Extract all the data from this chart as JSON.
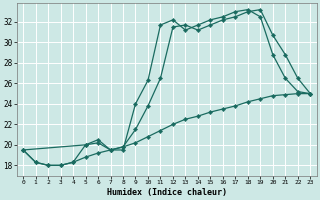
{
  "xlabel": "Humidex (Indice chaleur)",
  "bg_color": "#cde8e5",
  "line_color": "#1a6b60",
  "grid_color": "#ffffff",
  "xlim": [
    -0.5,
    23.5
  ],
  "ylim": [
    17.0,
    33.8
  ],
  "yticks": [
    18,
    20,
    22,
    24,
    26,
    28,
    30,
    32
  ],
  "xticks": [
    0,
    1,
    2,
    3,
    4,
    5,
    6,
    7,
    8,
    9,
    10,
    11,
    12,
    13,
    14,
    15,
    16,
    17,
    18,
    19,
    20,
    21,
    22,
    23
  ],
  "line1_x": [
    0,
    1,
    2,
    3,
    4,
    5,
    6,
    7,
    8,
    9,
    10,
    11,
    12,
    13,
    14,
    15,
    16,
    17,
    18,
    19,
    20,
    21,
    22,
    23
  ],
  "line1_y": [
    19.5,
    18.3,
    18.0,
    18.0,
    18.3,
    20.0,
    20.2,
    19.5,
    19.5,
    24.0,
    26.3,
    31.7,
    32.2,
    31.2,
    31.7,
    32.2,
    32.5,
    33.0,
    33.2,
    32.5,
    28.8,
    26.5,
    25.2,
    25.0
  ],
  "line2_x": [
    0,
    5,
    6,
    7,
    8,
    9,
    10,
    11,
    12,
    13,
    14,
    15,
    16,
    17,
    18,
    19,
    20,
    21,
    22,
    23
  ],
  "line2_y": [
    19.5,
    20.0,
    20.5,
    19.5,
    19.8,
    21.5,
    23.8,
    26.5,
    31.5,
    31.7,
    31.2,
    31.7,
    32.2,
    32.5,
    33.0,
    33.2,
    30.7,
    28.8,
    26.5,
    25.0
  ],
  "line3_x": [
    0,
    1,
    2,
    3,
    4,
    5,
    6,
    7,
    8,
    9,
    10,
    11,
    12,
    13,
    14,
    15,
    16,
    17,
    18,
    19,
    20,
    21,
    22,
    23
  ],
  "line3_y": [
    19.5,
    18.3,
    18.0,
    18.0,
    18.3,
    18.8,
    19.2,
    19.5,
    19.8,
    20.2,
    20.8,
    21.4,
    22.0,
    22.5,
    22.8,
    23.2,
    23.5,
    23.8,
    24.2,
    24.5,
    24.8,
    24.9,
    25.0,
    25.0
  ]
}
